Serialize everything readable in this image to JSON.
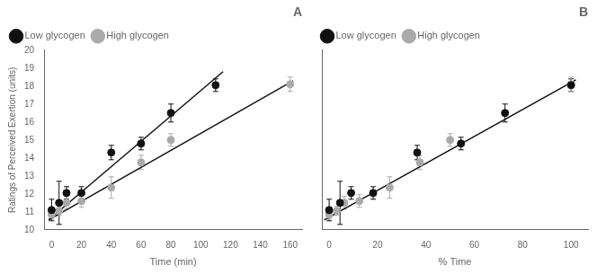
{
  "chart_data": [
    {
      "type": "scatter",
      "title": "A",
      "xlabel": "Time (min)",
      "ylabel": "Ratings of Perceived Exertion (units)",
      "xlim": [
        -5,
        168
      ],
      "ylim": [
        10,
        20
      ],
      "xticks": [
        0,
        20,
        40,
        60,
        80,
        100,
        120,
        140,
        160
      ],
      "yticks": [
        10,
        11,
        12,
        13,
        14,
        15,
        16,
        17,
        18,
        19,
        20
      ],
      "grid": false,
      "legend": "upper left",
      "series": [
        {
          "name": "Low glycogen",
          "color": "#111111",
          "marker": "circle",
          "x": [
            0,
            5,
            10,
            20,
            40,
            60,
            80,
            110
          ],
          "values": [
            11.1,
            11.5,
            12.05,
            12.05,
            14.3,
            14.8,
            16.5,
            18.05
          ],
          "yerr": [
            0.6,
            1.2,
            0.35,
            0.35,
            0.4,
            0.35,
            0.5,
            0.35
          ]
        },
        {
          "name": "High glycogen",
          "color": "#aaaaaa",
          "marker": "circle",
          "x": [
            0,
            5,
            10,
            20,
            40,
            60,
            80,
            160
          ],
          "values": [
            10.85,
            11.05,
            11.5,
            11.6,
            12.35,
            13.75,
            15.0,
            18.1
          ],
          "yerr": [
            0.25,
            0.25,
            0.35,
            0.35,
            0.6,
            0.4,
            0.35,
            0.4
          ]
        },
        {
          "type": "line",
          "color": "#111111",
          "x": [
            -2,
            115
          ],
          "values": [
            10.55,
            18.8
          ]
        },
        {
          "type": "line",
          "color": "#111111",
          "x": [
            -2,
            162
          ],
          "values": [
            10.55,
            18.3
          ]
        }
      ]
    },
    {
      "type": "scatter",
      "title": "B",
      "xlabel": "% Time",
      "xlim": [
        -3,
        107
      ],
      "ylim": [
        10,
        20
      ],
      "xticks": [
        0,
        20,
        40,
        60,
        80,
        100
      ],
      "yticks": [
        10,
        11,
        12,
        13,
        14,
        15,
        16,
        17,
        18,
        19,
        20
      ],
      "grid": false,
      "legend": "upper left",
      "tick_labels": "x",
      "series": [
        {
          "name": "Low glycogen",
          "color": "#111111",
          "marker": "circle",
          "x": [
            0,
            4.5,
            9.1,
            18.2,
            36.4,
            54.5,
            72.7,
            100
          ],
          "values": [
            11.1,
            11.5,
            12.05,
            12.05,
            14.3,
            14.8,
            16.5,
            18.05
          ],
          "yerr": [
            0.6,
            1.2,
            0.35,
            0.35,
            0.4,
            0.35,
            0.5,
            0.35
          ]
        },
        {
          "name": "High glycogen",
          "color": "#aaaaaa",
          "marker": "circle",
          "x": [
            0,
            3.1,
            6.25,
            12.5,
            25.0,
            37.5,
            50.0,
            100
          ],
          "values": [
            10.85,
            11.05,
            11.5,
            11.6,
            12.35,
            13.75,
            15.0,
            18.1
          ],
          "yerr": [
            0.25,
            0.25,
            0.35,
            0.35,
            0.6,
            0.4,
            0.35,
            0.4
          ]
        },
        {
          "type": "line",
          "color": "#111111",
          "x": [
            -2,
            102
          ],
          "values": [
            10.55,
            18.35
          ]
        }
      ]
    }
  ]
}
